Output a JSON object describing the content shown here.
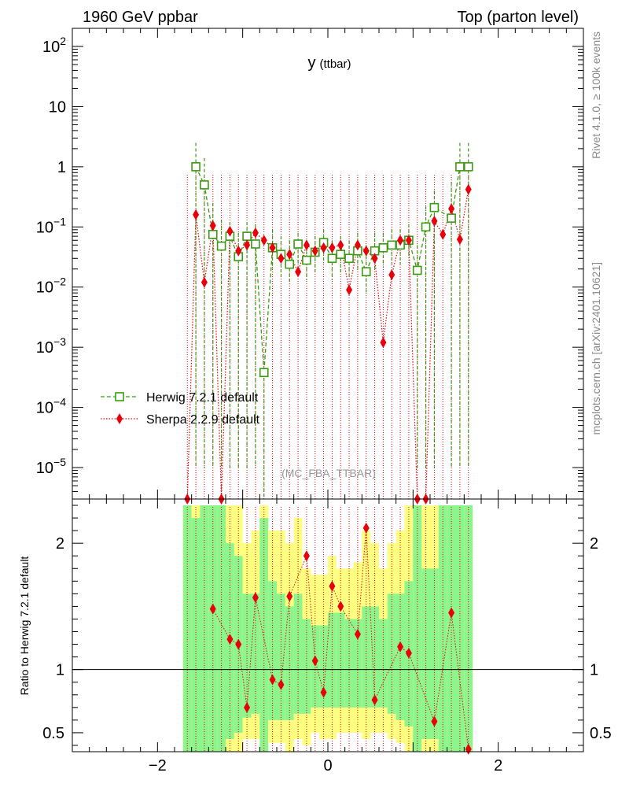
{
  "header": {
    "left_label": "1960 GeV ppbar",
    "right_label": "Top (parton level)"
  },
  "side": {
    "rivet_label": "Rivet 4.1.0, ≥ 100k events",
    "source_label": "mcplots.cern.ch [arXiv:2401.10621]"
  },
  "chart_data": {
    "type": "line",
    "title_main": "y",
    "title_sub": "(ttbar)",
    "analysis_label": "(MC_FBA_TTBAR)",
    "xlabel": "",
    "ylabel_ratio": "Ratio to Herwig 7.2.1 default",
    "xlim": [
      -3,
      3
    ],
    "ylim_main": [
      3e-06,
      200
    ],
    "ylim_ratio": [
      0.35,
      2.35
    ],
    "xscale_ticks": [
      {
        "v": -2,
        "label": "−2"
      },
      {
        "v": 0,
        "label": "0"
      },
      {
        "v": 2,
        "label": "2"
      }
    ],
    "yticks_main": [
      {
        "v": 100,
        "base": "10",
        "exp": "2"
      },
      {
        "v": 10,
        "base": "10",
        "exp": ""
      },
      {
        "v": 1,
        "base": "1",
        "exp": ""
      },
      {
        "v": 0.1,
        "base": "10",
        "exp": "−1"
      },
      {
        "v": 0.01,
        "base": "10",
        "exp": "−2"
      },
      {
        "v": 0.001,
        "base": "10",
        "exp": "−3"
      },
      {
        "v": 0.0001,
        "base": "10",
        "exp": "−4"
      },
      {
        "v": 1e-05,
        "base": "10",
        "exp": "−5"
      }
    ],
    "yticks_ratio": [
      {
        "v": 0.5,
        "label": "0.5"
      },
      {
        "v": 1,
        "label": "1"
      },
      {
        "v": 2,
        "label": "2"
      }
    ],
    "x": [
      -1.65,
      -1.55,
      -1.45,
      -1.35,
      -1.25,
      -1.15,
      -1.05,
      -0.95,
      -0.85,
      -0.75,
      -0.65,
      -0.55,
      -0.45,
      -0.35,
      -0.25,
      -0.15,
      -0.05,
      0.05,
      0.15,
      0.25,
      0.35,
      0.45,
      0.55,
      0.65,
      0.75,
      0.85,
      0.95,
      1.05,
      1.15,
      1.25,
      1.35,
      1.45,
      1.55,
      1.65
    ],
    "series": [
      {
        "name": "Herwig 7.2.1 default",
        "color": "#3a9a12",
        "marker": "open-square",
        "values": [
          null,
          1.0,
          0.5,
          0.075,
          0.048,
          0.07,
          0.032,
          0.07,
          0.052,
          0.00038,
          0.045,
          0.035,
          0.024,
          0.052,
          0.028,
          0.038,
          0.055,
          0.03,
          0.035,
          0.03,
          0.04,
          0.018,
          0.04,
          0.045,
          0.05,
          0.05,
          0.06,
          0.019,
          0.1,
          0.21,
          null,
          0.14,
          1.0,
          1.0
        ],
        "err_up": [
          null,
          2.5,
          1.4,
          0.25,
          0.13,
          0.12,
          0.08,
          0.12,
          0.11,
          0.00038,
          0.09,
          0.07,
          0.06,
          0.08,
          0.06,
          0.07,
          0.09,
          0.06,
          0.07,
          0.06,
          0.08,
          0.05,
          0.08,
          0.08,
          0.09,
          0.09,
          0.11,
          0.05,
          0.22,
          0.4,
          null,
          0.55,
          2.5,
          2.5
        ],
        "err_down": [
          null,
          1e-05,
          1e-05,
          1e-05,
          1e-05,
          1e-05,
          1e-05,
          1e-05,
          1e-05,
          1e-07,
          0.02,
          0.015,
          0.011,
          0.02,
          0.013,
          0.018,
          0.025,
          0.013,
          0.016,
          0.014,
          0.018,
          0.008,
          0.02,
          0.022,
          0.024,
          0.024,
          0.03,
          1e-05,
          1e-05,
          1e-05,
          null,
          1e-05,
          1e-05,
          1e-05
        ]
      },
      {
        "name": "Sherpa 2.2.9 default",
        "color": "#e8000b",
        "marker": "diamond",
        "values": [
          3e-06,
          0.16,
          0.012,
          0.105,
          3e-06,
          0.085,
          0.04,
          0.05,
          0.08,
          0.06,
          0.045,
          0.03,
          0.035,
          0.018,
          0.05,
          0.04,
          0.045,
          0.045,
          0.05,
          0.009,
          0.05,
          0.04,
          0.03,
          0.0012,
          0.016,
          0.06,
          0.06,
          3e-06,
          3e-06,
          0.125,
          0.075,
          0.2,
          0.062,
          0.42
        ],
        "ratio": [
          null,
          null,
          null,
          1.48,
          null,
          1.24,
          1.2,
          0.7,
          1.57,
          null,
          0.92,
          0.88,
          1.58,
          null,
          1.9,
          1.07,
          0.82,
          1.66,
          1.5,
          null,
          1.28,
          2.12,
          0.76,
          null,
          null,
          1.18,
          1.13,
          null,
          null,
          0.59,
          null,
          1.45,
          null,
          0.37
        ]
      }
    ],
    "ratio_bands": {
      "green_up": [
        2.3,
        2.2,
        2.3,
        2.3,
        2.3,
        2.0,
        1.9,
        1.6,
        1.6,
        2.2,
        1.7,
        1.6,
        1.5,
        1.6,
        1.4,
        1.35,
        1.35,
        1.45,
        1.45,
        1.4,
        1.4,
        1.5,
        1.5,
        1.4,
        1.6,
        1.6,
        1.7,
        2.3,
        1.8,
        1.8,
        2.3,
        2.3,
        2.3,
        2.3
      ],
      "green_down": [
        0.35,
        0.35,
        0.35,
        0.35,
        0.35,
        0.45,
        0.5,
        0.62,
        0.65,
        0.35,
        0.6,
        0.6,
        0.6,
        0.65,
        0.65,
        0.7,
        0.7,
        0.7,
        0.7,
        0.7,
        0.7,
        0.7,
        0.7,
        0.7,
        0.65,
        0.6,
        0.55,
        0.35,
        0.45,
        0.45,
        0.35,
        0.35,
        0.35,
        0.35
      ],
      "yellow_up": [
        2.3,
        2.3,
        2.3,
        2.3,
        2.3,
        2.3,
        2.3,
        2.0,
        2.1,
        2.3,
        2.1,
        2.1,
        2.0,
        2.2,
        1.8,
        1.75,
        1.75,
        1.9,
        1.8,
        1.8,
        1.85,
        2.1,
        2.0,
        1.8,
        2.0,
        2.1,
        2.3,
        2.3,
        2.3,
        2.3,
        2.3,
        2.3,
        2.3,
        2.3
      ],
      "yellow_down": [
        0.35,
        0.35,
        0.35,
        0.35,
        0.35,
        0.35,
        0.35,
        0.45,
        0.45,
        0.35,
        0.42,
        0.42,
        0.35,
        0.45,
        0.4,
        0.5,
        0.45,
        0.45,
        0.5,
        0.5,
        0.5,
        0.45,
        0.5,
        0.5,
        0.45,
        0.42,
        0.35,
        0.35,
        0.35,
        0.35,
        0.35,
        0.35,
        0.35,
        0.35
      ]
    },
    "legend": [
      {
        "label": "Herwig 7.2.1 default",
        "color": "#3a9a12",
        "marker": "open-square"
      },
      {
        "label": "Sherpa 2.2.9 default",
        "color": "#e8000b",
        "marker": "diamond"
      }
    ],
    "legend_position": "bottom-left"
  }
}
